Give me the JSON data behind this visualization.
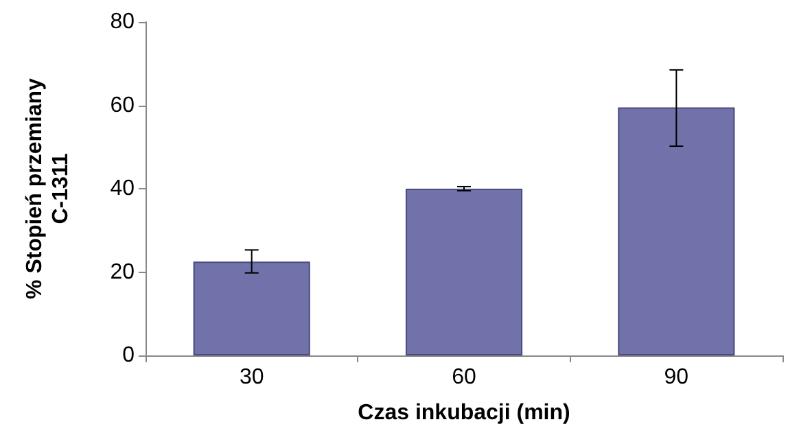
{
  "chart_data": {
    "type": "bar",
    "xlabel": "Czas inkubacji (min)",
    "ylabel": "% Stopień przemiany C-1311",
    "categories": [
      "30",
      "60",
      "90"
    ],
    "values": [
      22.5,
      40,
      59.5
    ],
    "errors": [
      [
        19.8,
        25.3
      ],
      [
        39.5,
        40.5
      ],
      [
        50.2,
        68.5
      ]
    ],
    "color": "#7272aa",
    "ylim": [
      0,
      80
    ],
    "yticks": [
      0,
      20,
      40,
      60,
      80
    ],
    "grid": false
  }
}
